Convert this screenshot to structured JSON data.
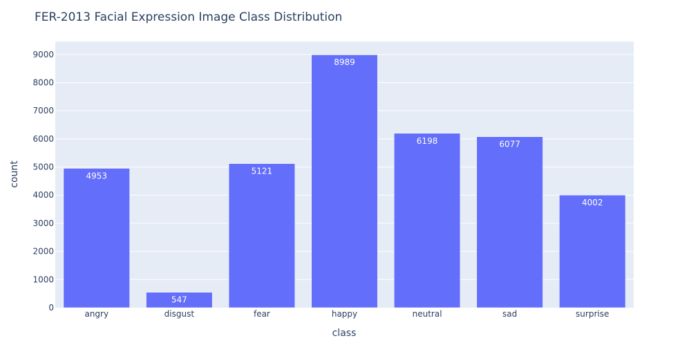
{
  "chart_data": {
    "type": "bar",
    "title": "FER-2013 Facial Expression Image Class Distribution",
    "xlabel": "class",
    "ylabel": "count",
    "categories": [
      "angry",
      "disgust",
      "fear",
      "happy",
      "neutral",
      "sad",
      "surprise"
    ],
    "values": [
      4953,
      547,
      5121,
      8989,
      6198,
      6077,
      4002
    ],
    "data_labels": [
      "4953",
      "547",
      "5121",
      "8989",
      "6198",
      "6077",
      "4002"
    ],
    "ylim": [
      0,
      9462
    ],
    "yticks": [
      0,
      1000,
      2000,
      3000,
      4000,
      5000,
      6000,
      7000,
      8000,
      9000
    ],
    "ytick_labels": [
      "0",
      "1000",
      "2000",
      "3000",
      "4000",
      "5000",
      "6000",
      "7000",
      "8000",
      "9000"
    ],
    "grid": true,
    "legend": "none",
    "colors": {
      "bar": "#636efa",
      "plot_background": "#e5ecf6",
      "gridline": "#ffffff",
      "text": "#2a3f5f"
    }
  }
}
